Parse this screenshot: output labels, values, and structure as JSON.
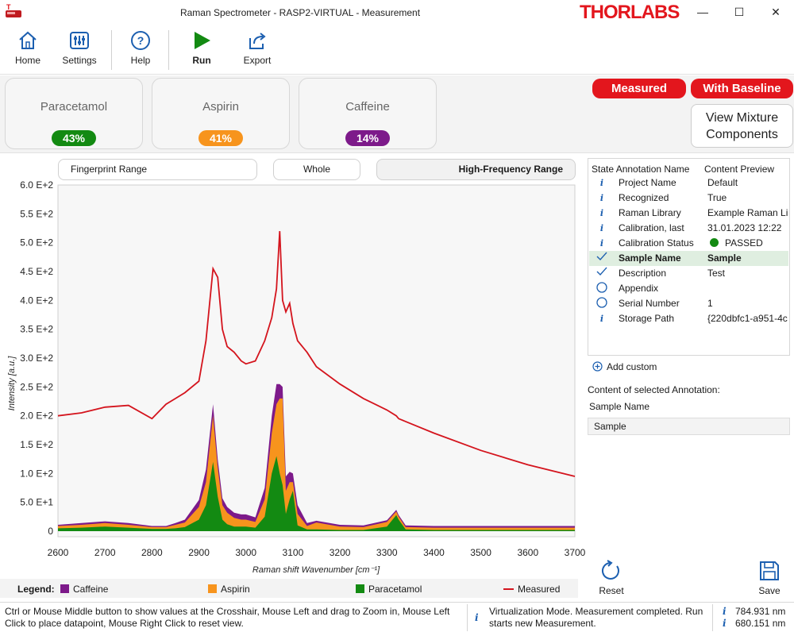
{
  "window": {
    "title": "Raman Spectrometer - RASP2-VIRTUAL - Measurement",
    "logo": "THORLABS",
    "minimize": "—",
    "maximize": "☐",
    "close": "✕"
  },
  "ribbon": {
    "home": "Home",
    "settings": "Settings",
    "help": "Help",
    "run": "Run",
    "export": "Export"
  },
  "components": [
    {
      "name": "Paracetamol",
      "percent": "43%",
      "color": "#138a12"
    },
    {
      "name": "Aspirin",
      "percent": "41%",
      "color": "#f7941d"
    },
    {
      "name": "Caffeine",
      "percent": "14%",
      "color": "#7d1a8a"
    }
  ],
  "toggles": {
    "measured": "Measured",
    "with_baseline": "With Baseline",
    "view_mixture_line1": "View Mixture",
    "view_mixture_line2": "Components"
  },
  "ranges": {
    "fingerprint": "Fingerprint Range",
    "whole": "Whole",
    "high_frequency": "High-Frequency Range"
  },
  "colors": {
    "accent_red": "#e3161d",
    "measured_line": "#d4141d",
    "paracetamol": "#138a12",
    "aspirin": "#f7941d",
    "caffeine": "#7d1a8a",
    "selected_row": "#dfeee0"
  },
  "chart_data": {
    "type": "area",
    "xlabel": "Raman shift Wavenumber [cm⁻¹]",
    "ylabel": "Intensity [a.u.]",
    "xlim": [
      2600,
      3700
    ],
    "ylim": [
      0,
      600
    ],
    "xticks": [
      "2600",
      "2700",
      "2800",
      "2900",
      "3000",
      "3100",
      "3200",
      "3300",
      "3400",
      "3500",
      "3600",
      "3700"
    ],
    "yticks": [
      "0",
      "5.0 E+1",
      "1.0 E+2",
      "1.5 E+2",
      "2.0 E+2",
      "2.5 E+2",
      "3.0 E+2",
      "3.5 E+2",
      "4.0 E+2",
      "4.5 E+2",
      "5.0 E+2",
      "5.5 E+2",
      "6.0 E+2"
    ],
    "ytick_values": [
      0,
      50,
      100,
      150,
      200,
      250,
      300,
      350,
      400,
      450,
      500,
      550,
      600
    ],
    "x": [
      2600,
      2650,
      2700,
      2750,
      2800,
      2830,
      2850,
      2870,
      2900,
      2915,
      2930,
      2940,
      2950,
      2960,
      2975,
      2990,
      3000,
      3020,
      3040,
      3055,
      3065,
      3072,
      3078,
      3085,
      3093,
      3100,
      3110,
      3130,
      3150,
      3200,
      3250,
      3300,
      3320,
      3325,
      3340,
      3400,
      3500,
      3600,
      3700
    ],
    "series": [
      {
        "name": "Paracetamol",
        "stacked": true,
        "values": [
          5,
          6,
          8,
          6,
          4,
          4,
          5,
          7,
          20,
          45,
          120,
          60,
          20,
          12,
          8,
          8,
          8,
          6,
          25,
          100,
          130,
          100,
          80,
          30,
          55,
          70,
          10,
          3,
          3,
          2,
          2,
          8,
          28,
          20,
          3,
          2,
          2,
          2,
          2
        ]
      },
      {
        "name": "Aspirin",
        "stacked": true,
        "values": [
          4,
          5,
          6,
          5,
          3,
          3,
          6,
          8,
          22,
          40,
          80,
          50,
          25,
          20,
          15,
          12,
          12,
          10,
          30,
          70,
          90,
          130,
          150,
          40,
          30,
          15,
          20,
          6,
          12,
          6,
          5,
          8,
          6,
          5,
          4,
          4,
          4,
          4,
          4
        ]
      },
      {
        "name": "Caffeine",
        "stacked": true,
        "values": [
          2,
          3,
          3,
          3,
          2,
          2,
          3,
          5,
          12,
          22,
          20,
          15,
          12,
          10,
          9,
          9,
          9,
          8,
          20,
          30,
          35,
          25,
          20,
          25,
          18,
          15,
          15,
          5,
          3,
          3,
          3,
          3,
          3,
          3,
          3,
          3,
          3,
          3,
          3
        ]
      },
      {
        "name": "Measured",
        "line": true,
        "values": [
          200,
          205,
          215,
          218,
          195,
          220,
          230,
          240,
          260,
          330,
          455,
          440,
          350,
          320,
          310,
          295,
          290,
          295,
          330,
          370,
          420,
          520,
          400,
          380,
          395,
          360,
          330,
          310,
          285,
          255,
          230,
          210,
          200,
          195,
          190,
          170,
          140,
          115,
          95
        ]
      }
    ],
    "legend": [
      "Caffeine",
      "Aspirin",
      "Paracetamol",
      "Measured"
    ]
  },
  "legend": {
    "title": "Legend:",
    "caffeine": "Caffeine",
    "aspirin": "Aspirin",
    "paracetamol": "Paracetamol",
    "measured": "Measured"
  },
  "annotations": {
    "col_name": "State Annotation Name",
    "col_preview": "Content Preview",
    "rows": [
      {
        "state": "info",
        "name": "Project Name",
        "value": "Default"
      },
      {
        "state": "info",
        "name": "Recognized",
        "value": "True"
      },
      {
        "state": "info",
        "name": "Raman Library",
        "value": "Example Raman Lib"
      },
      {
        "state": "info",
        "name": "Calibration, last",
        "value": "31.01.2023 12:22"
      },
      {
        "state": "info",
        "name": "Calibration Status",
        "value": "PASSED"
      },
      {
        "state": "check",
        "name": "Sample Name",
        "value": "Sample"
      },
      {
        "state": "check",
        "name": "Description",
        "value": "Test"
      },
      {
        "state": "empty",
        "name": "Appendix",
        "value": ""
      },
      {
        "state": "empty",
        "name": "Serial Number",
        "value": "1"
      },
      {
        "state": "info",
        "name": "Storage Path",
        "value": "{220dbfc1-a951-4c"
      }
    ],
    "add_custom": "Add custom",
    "content_label": "Content of selected Annotation:",
    "selected_name": "Sample Name",
    "selected_value": "Sample"
  },
  "actions": {
    "reset": "Reset",
    "save": "Save"
  },
  "status": {
    "hint_line1": "Ctrl or Mouse Middle button to show values at the Crosshair, Mouse Left and drag to Zoom in, Mouse Left",
    "hint_line2": "Click to place datapoint, Mouse Right Click to reset view.",
    "message_line1": "Virtualization Mode. Measurement completed. Run",
    "message_line2": "starts new Measurement.",
    "wl1": "784.931 nm",
    "wl2": "680.151 nm"
  }
}
